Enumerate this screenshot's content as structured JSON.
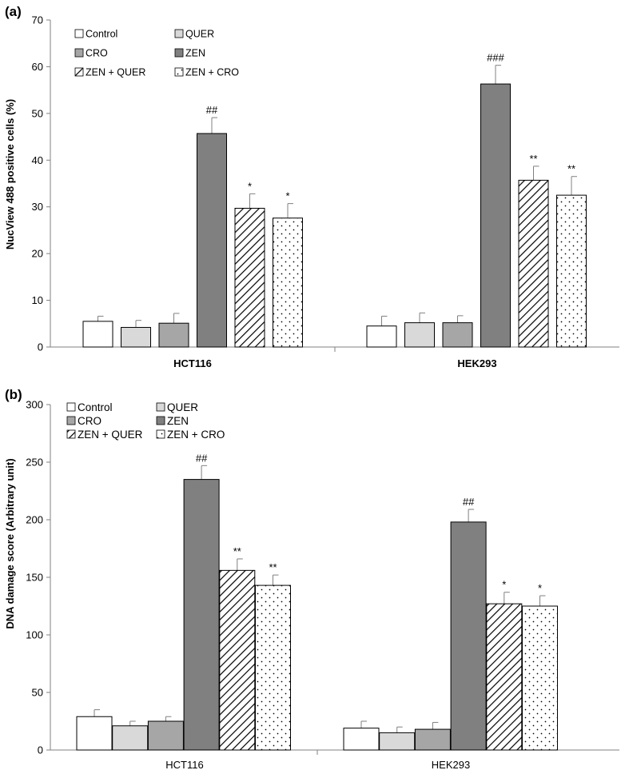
{
  "colors": {
    "control": "#ffffff",
    "quer": "#d9d9d9",
    "cro": "#a6a6a6",
    "zen": "#808080",
    "outline": "#000000",
    "axis": "#808080"
  },
  "chart_data": [
    {
      "panel_label": "(a)",
      "type": "bar",
      "ylabel": "NucView 488 positive cells (%)",
      "xlabel": "",
      "ylim": [
        0,
        70
      ],
      "yticks": [
        0,
        10,
        20,
        30,
        40,
        50,
        60,
        70
      ],
      "tick_labels": [
        "0",
        "10",
        "20",
        "30",
        "40",
        "50",
        "60",
        "70"
      ],
      "categories": [
        "HCT116",
        "HEK293"
      ],
      "category_bold": true,
      "legend_position": "top-left",
      "series": [
        {
          "name": "Control",
          "pattern": "control",
          "values": [
            5.5,
            4.5
          ],
          "errors": [
            1.1,
            2.1
          ],
          "labels": [
            "",
            ""
          ]
        },
        {
          "name": "QUER",
          "pattern": "quer",
          "values": [
            4.2,
            5.2
          ],
          "errors": [
            1.5,
            2.1
          ],
          "labels": [
            "",
            ""
          ]
        },
        {
          "name": "CRO",
          "pattern": "cro",
          "values": [
            5.1,
            5.2
          ],
          "errors": [
            2.1,
            1.5
          ],
          "labels": [
            "",
            ""
          ]
        },
        {
          "name": "ZEN",
          "pattern": "zen",
          "values": [
            45.7,
            56.3
          ],
          "errors": [
            3.4,
            4.0
          ],
          "labels": [
            "##",
            "###"
          ]
        },
        {
          "name": "ZEN + QUER",
          "pattern": "hatch",
          "values": [
            29.7,
            35.7
          ],
          "errors": [
            3.1,
            3.0
          ],
          "labels": [
            "*",
            "**"
          ]
        },
        {
          "name": "ZEN + CRO",
          "pattern": "dots",
          "values": [
            27.6,
            32.5
          ],
          "errors": [
            3.1,
            4.0
          ],
          "labels": [
            "*",
            "**"
          ]
        }
      ]
    },
    {
      "panel_label": "(b)",
      "type": "bar",
      "ylabel": "DNA damage score (Arbitrary unit)",
      "xlabel": "",
      "ylim": [
        0,
        300
      ],
      "yticks": [
        0,
        50,
        100,
        150,
        200,
        250,
        300
      ],
      "tick_labels": [
        "0",
        "50",
        "100",
        "150",
        "200",
        "250",
        "300"
      ],
      "categories": [
        "HCT116",
        "HEK293"
      ],
      "category_bold": false,
      "legend_position": "top-left",
      "series": [
        {
          "name": "Control",
          "pattern": "control",
          "values": [
            29,
            19
          ],
          "errors": [
            6,
            6
          ],
          "labels": [
            "",
            ""
          ]
        },
        {
          "name": "QUER",
          "pattern": "quer",
          "values": [
            21,
            15
          ],
          "errors": [
            4,
            5
          ],
          "labels": [
            "",
            ""
          ]
        },
        {
          "name": "CRO",
          "pattern": "cro",
          "values": [
            25,
            18
          ],
          "errors": [
            4,
            6
          ],
          "labels": [
            "",
            ""
          ]
        },
        {
          "name": "ZEN",
          "pattern": "zen",
          "values": [
            235,
            198
          ],
          "errors": [
            12,
            11
          ],
          "labels": [
            "##",
            "##"
          ]
        },
        {
          "name": "ZEN + QUER",
          "pattern": "hatch",
          "values": [
            156,
            127
          ],
          "errors": [
            10,
            10
          ],
          "labels": [
            "**",
            "*"
          ]
        },
        {
          "name": "ZEN + CRO",
          "pattern": "dots",
          "values": [
            143,
            125
          ],
          "errors": [
            9,
            9
          ],
          "labels": [
            "**",
            "*"
          ]
        }
      ]
    }
  ]
}
